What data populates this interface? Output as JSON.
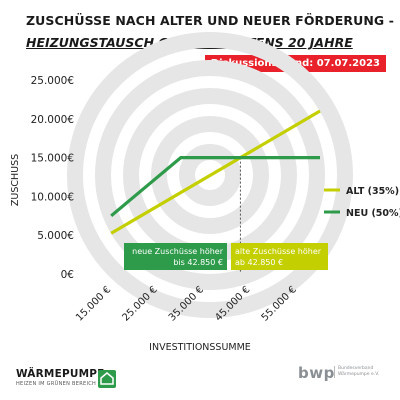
{
  "header": {
    "title_line1": "ZUSCHÜSSE NACH ALTER UND NEUER FÖRDERUNG -",
    "title_line2": "HEIZUNGSTAUSCH GAS MINDESTENS 20 JAHRE",
    "badge": "Diskussionsstand: 07.07.2023"
  },
  "colors": {
    "alt": "#c4cf00",
    "neu": "#2e9b4b",
    "watermark": "#e6e6e6",
    "badge": "#e8212a"
  },
  "chart_data": {
    "type": "line",
    "xlabel": "INVESTITIONSSUMME",
    "ylabel": "ZUSCHUSS",
    "x_ticks": [
      15000,
      25000,
      35000,
      45000,
      55000
    ],
    "x_tick_labels": [
      "15.000 €",
      "25.000 €",
      "35.000 €",
      "45.000 €",
      "55.000 €"
    ],
    "y_ticks": [
      0,
      5000,
      10000,
      15000,
      20000,
      25000
    ],
    "y_tick_labels": [
      "0€",
      "5.000€",
      "10.000€",
      "15.000€",
      "20.000€",
      "25.000€"
    ],
    "xlim": [
      10000,
      60000
    ],
    "ylim": [
      0,
      25000
    ],
    "grid": false,
    "legend_position": "right",
    "series": [
      {
        "name": "ALT (35%)",
        "color_key": "alt",
        "points": [
          [
            15000,
            5250
          ],
          [
            60000,
            21000
          ]
        ]
      },
      {
        "name": "NEU (50%)",
        "color_key": "neu",
        "points": [
          [
            15000,
            7500
          ],
          [
            30000,
            15000
          ],
          [
            60000,
            15000
          ]
        ]
      }
    ],
    "crossover": {
      "x": 42850,
      "y": 15000
    },
    "annotations": [
      {
        "text_line1": "neue Zuschüsse höher",
        "text_line2": "bis 42.850 €",
        "color_key": "neu"
      },
      {
        "text_line1": "alte Zuschüsse höher",
        "text_line2": "ab 42.850 €",
        "color_key": "alt"
      }
    ]
  },
  "footer": {
    "left_logo_main": "WÄRMEPUMPE",
    "left_logo_sub": "HEIZEN IM GRÜNEN BEREICH",
    "right_logo_main": "bwp",
    "right_logo_sub": "Bundesverband Wärmepumpe e.V."
  }
}
